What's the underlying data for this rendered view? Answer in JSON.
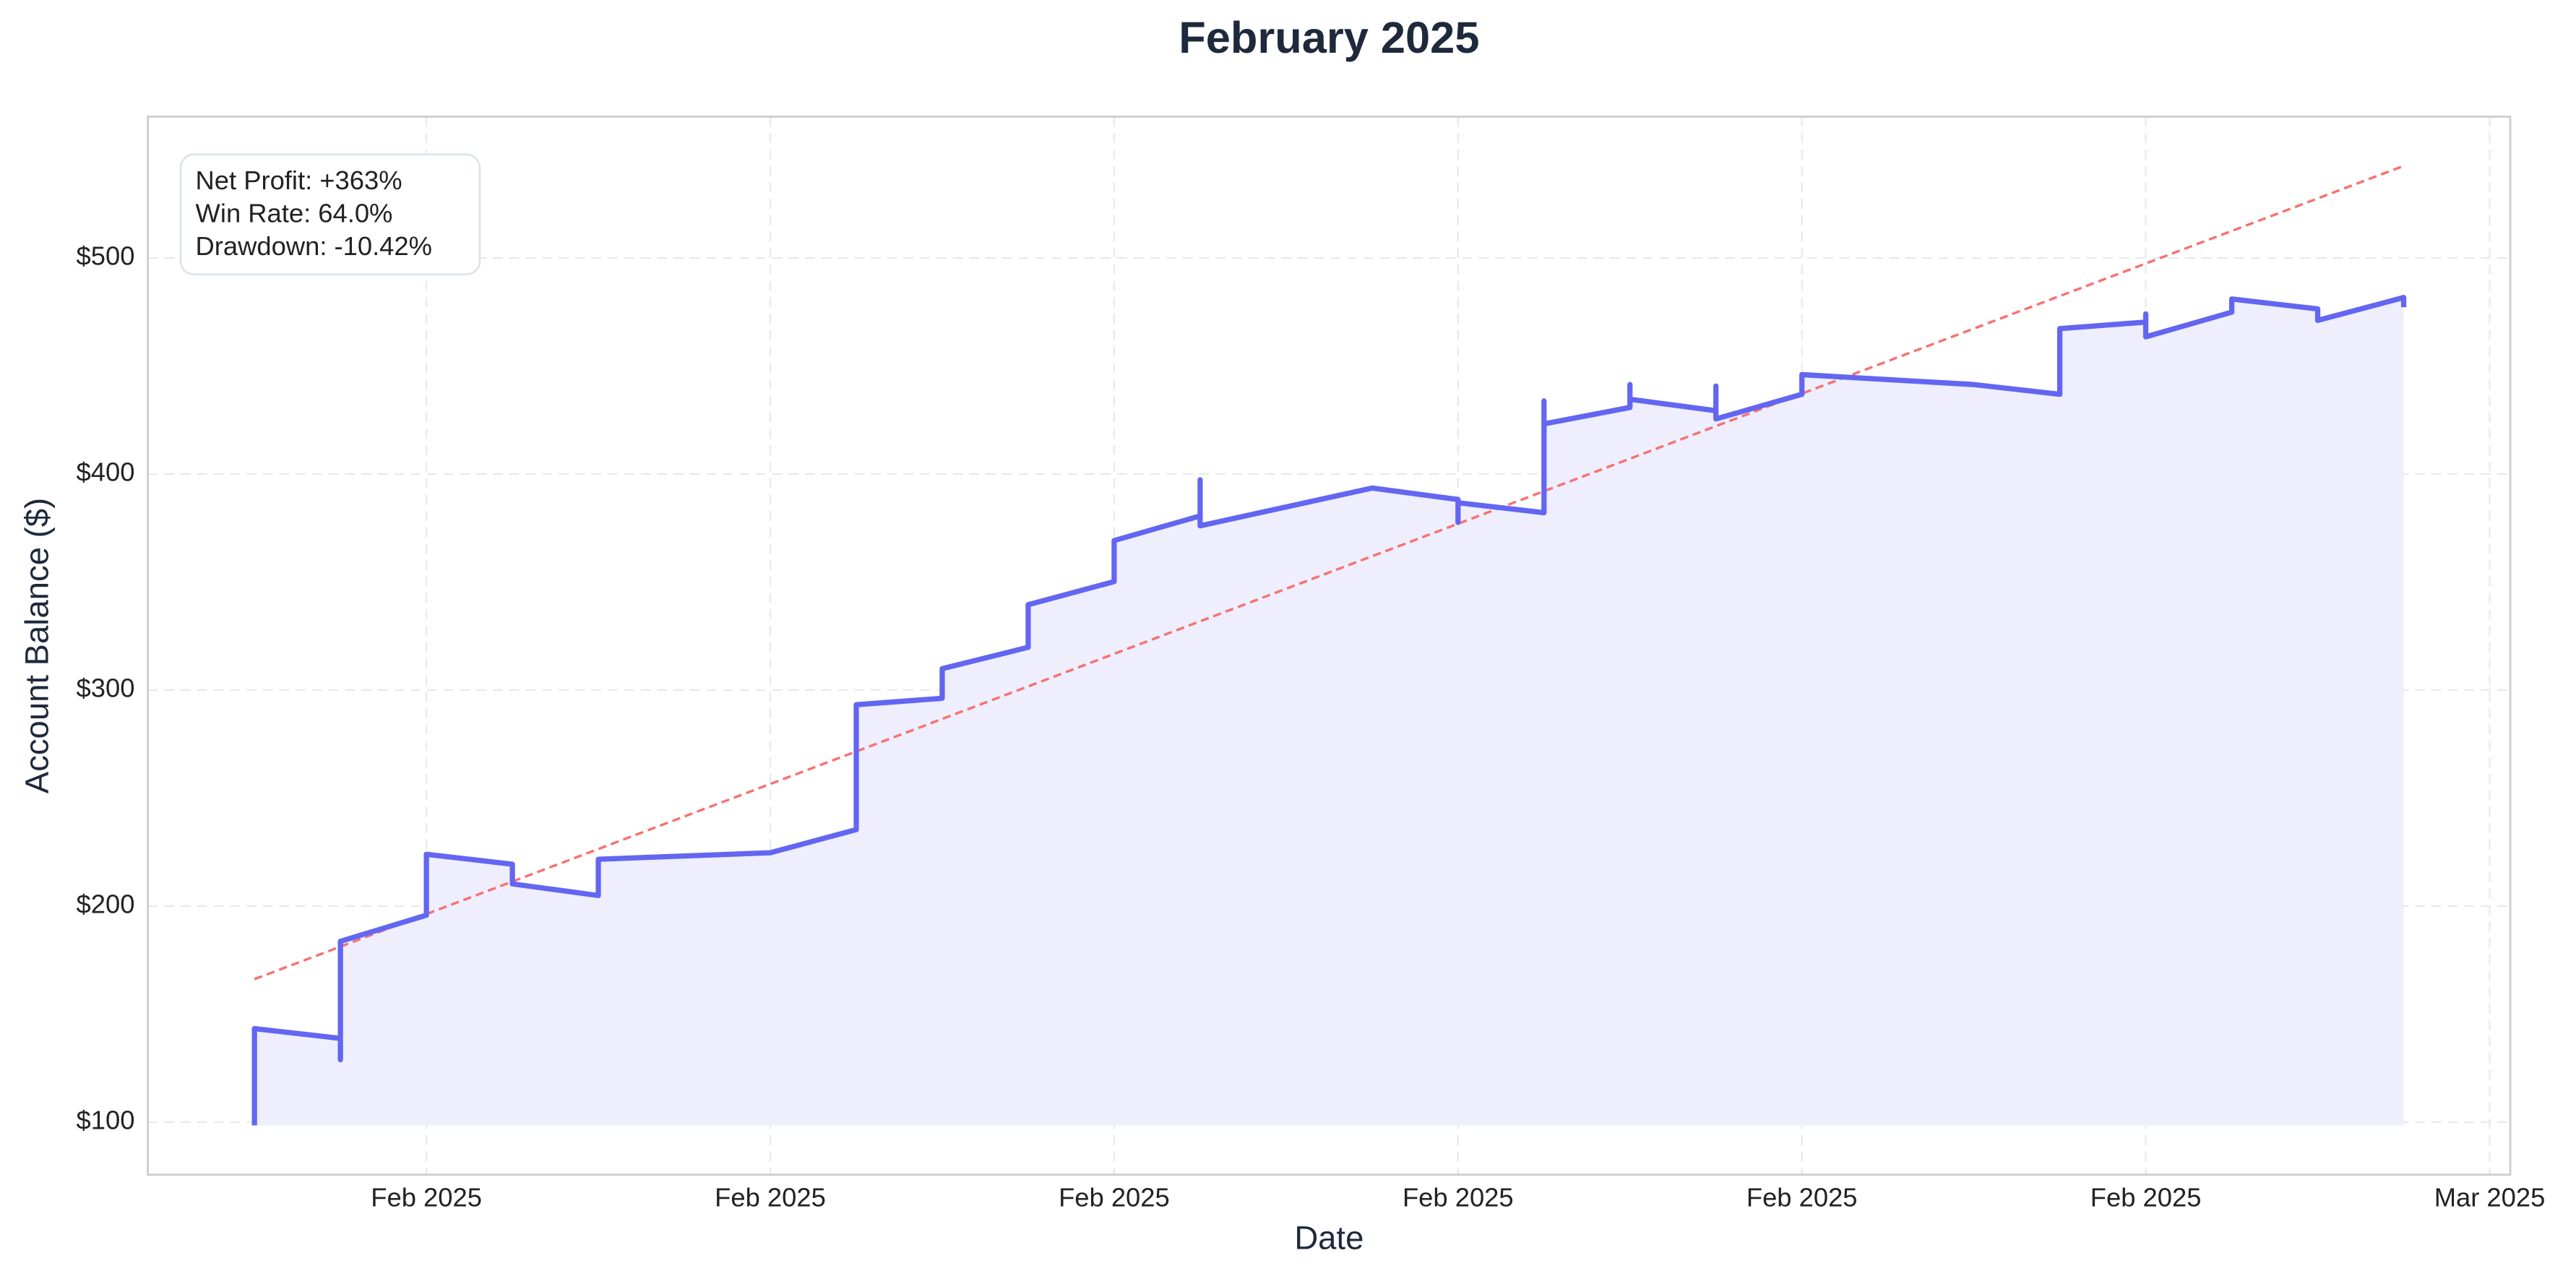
{
  "chart_data": {
    "type": "line",
    "title": "February 2025",
    "xlabel": "Date",
    "ylabel": "Account Balance ($)",
    "annotation": [
      "Net Profit: +363%",
      "Win Rate: 64.0%",
      "Drawdown: -10.42%"
    ],
    "xlim": [
      -0.81,
      6.06
    ],
    "xticks": [
      {
        "value": 0,
        "label": "Feb 2025"
      },
      {
        "value": 1,
        "label": "Feb 2025"
      },
      {
        "value": 2,
        "label": "Feb 2025"
      },
      {
        "value": 3,
        "label": "Feb 2025"
      },
      {
        "value": 4,
        "label": "Feb 2025"
      },
      {
        "value": 5,
        "label": "Feb 2025"
      },
      {
        "value": 6,
        "label": "Mar 2025"
      }
    ],
    "ylim": [
      75.7,
      565.4
    ],
    "yticks": [
      {
        "value": 100,
        "label": "$100"
      },
      {
        "value": 200,
        "label": "$200"
      },
      {
        "value": 300,
        "label": "$300"
      },
      {
        "value": 400,
        "label": "$400"
      },
      {
        "value": 500,
        "label": "$500"
      }
    ],
    "grid": true,
    "color": "#6366f1",
    "fill_color": "#eeeefc",
    "x": [
      -0.5,
      -0.5,
      -0.25,
      -0.25,
      -0.25,
      0,
      0,
      0.25,
      0.25,
      0.5,
      0.5,
      1.0,
      1.25,
      1.25,
      1.5,
      1.5,
      1.75,
      1.75,
      2.0,
      2.0,
      2.25,
      2.25,
      2.25,
      2.75,
      3.0,
      3.0,
      3.0,
      3.25,
      3.25,
      3.25,
      3.5,
      3.5,
      3.5,
      3.75,
      3.75,
      3.75,
      4.0,
      4.0,
      4.5,
      4.75,
      4.75,
      5.0,
      5.0,
      5.0,
      5.25,
      5.25,
      5.5,
      5.5,
      5.75,
      5.75
    ],
    "values": [
      98.5,
      143.3,
      138.8,
      128.9,
      183.7,
      195.8,
      224.0,
      219.4,
      210.3,
      204.9,
      221.7,
      224.7,
      235.4,
      293.2,
      296.2,
      309.9,
      319.8,
      339.5,
      350.2,
      369.2,
      380.6,
      397.3,
      376.0,
      393.5,
      388.2,
      377.6,
      386.7,
      382.1,
      433.8,
      423.2,
      430.8,
      441.4,
      434.6,
      429.3,
      440.7,
      425.5,
      436.9,
      446.0,
      441.4,
      436.9,
      467.3,
      470.3,
      474.1,
      463.5,
      474.9,
      481.0,
      476.4,
      471.1,
      481.7,
      477.2
    ],
    "trend": {
      "x": [
        -0.5,
        5.75
      ],
      "values": [
        166.2,
        542.6
      ],
      "color": "#f87171"
    }
  }
}
